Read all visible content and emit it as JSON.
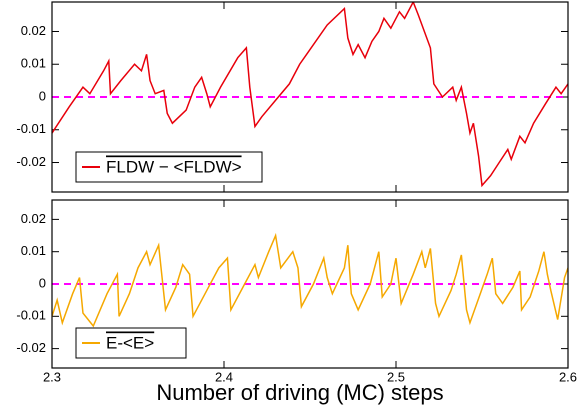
{
  "chart_data": [
    {
      "type": "line",
      "xlim": [
        2.3,
        2.6
      ],
      "xticks": [
        2.3,
        2.4,
        2.5,
        2.6
      ],
      "ylim": [
        -0.029,
        0.029
      ],
      "yticks": [
        -0.02,
        -0.01,
        0,
        0.01,
        0.02
      ],
      "hline": 0,
      "hline_color": "#ff00ff",
      "legend": "lower left",
      "series": [
        {
          "name": "FLDW − <FLDW>",
          "color": "#e8000b",
          "x": [
            2.3,
            2.31,
            2.318,
            2.322,
            2.33,
            2.333,
            2.334,
            2.34,
            2.348,
            2.352,
            2.355,
            2.357,
            2.36,
            2.365,
            2.367,
            2.37,
            2.378,
            2.383,
            2.387,
            2.39,
            2.392,
            2.398,
            2.408,
            2.413,
            2.415,
            2.418,
            2.422,
            2.43,
            2.438,
            2.444,
            2.448,
            2.46,
            2.47,
            2.472,
            2.475,
            2.478,
            2.482,
            2.486,
            2.49,
            2.493,
            2.497,
            2.502,
            2.505,
            2.51,
            2.513,
            2.52,
            2.522,
            2.527,
            2.533,
            2.535,
            2.538,
            2.541,
            2.543,
            2.545,
            2.548,
            2.55,
            2.555,
            2.56,
            2.565,
            2.567,
            2.572,
            2.575,
            2.58,
            2.587,
            2.593,
            2.596,
            2.6
          ],
          "values": [
            -0.011,
            -0.003,
            0.003,
            0.001,
            0.008,
            0.011,
            0.001,
            0.005,
            0.01,
            0.008,
            0.013,
            0.005,
            0.001,
            0.002,
            -0.005,
            -0.008,
            -0.004,
            0.003,
            0.006,
            0.001,
            -0.003,
            0.003,
            0.012,
            0.015,
            0.003,
            -0.009,
            -0.006,
            -0.001,
            0.004,
            0.01,
            0.013,
            0.022,
            0.027,
            0.018,
            0.013,
            0.016,
            0.012,
            0.017,
            0.02,
            0.024,
            0.021,
            0.026,
            0.024,
            0.029,
            0.025,
            0.015,
            0.004,
            0.0,
            0.003,
            -0.001,
            0.003,
            -0.005,
            -0.011,
            -0.008,
            -0.018,
            -0.027,
            -0.024,
            -0.02,
            -0.016,
            -0.019,
            -0.012,
            -0.014,
            -0.008,
            -0.002,
            0.003,
            0.001,
            0.004
          ]
        }
      ]
    },
    {
      "type": "line",
      "xlabel": "Number of driving (MC) steps",
      "xlim": [
        2.3,
        2.6
      ],
      "xticks": [
        2.3,
        2.4,
        2.5,
        2.6
      ],
      "ylim": [
        -0.026,
        0.026
      ],
      "yticks": [
        -0.02,
        -0.01,
        0,
        0.01,
        0.02
      ],
      "hline": 0,
      "hline_color": "#ff00ff",
      "legend": "lower left",
      "series": [
        {
          "name": "E-<E>",
          "color": "#f5a800",
          "x": [
            2.3,
            2.303,
            2.306,
            2.312,
            2.316,
            2.318,
            2.324,
            2.332,
            2.338,
            2.339,
            2.345,
            2.35,
            2.355,
            2.357,
            2.362,
            2.364,
            2.366,
            2.372,
            2.376,
            2.38,
            2.382,
            2.39,
            2.397,
            2.402,
            2.404,
            2.412,
            2.418,
            2.42,
            2.426,
            2.43,
            2.433,
            2.44,
            2.443,
            2.445,
            2.452,
            2.458,
            2.46,
            2.463,
            2.47,
            2.472,
            2.474,
            2.478,
            2.485,
            2.49,
            2.492,
            2.497,
            2.5,
            2.503,
            2.51,
            2.515,
            2.517,
            2.52,
            2.523,
            2.525,
            2.532,
            2.535,
            2.538,
            2.541,
            2.543,
            2.549,
            2.553,
            2.556,
            2.558,
            2.562,
            2.568,
            2.572,
            2.573,
            2.578,
            2.583,
            2.586,
            2.588,
            2.59,
            2.594,
            2.598,
            2.6
          ],
          "values": [
            -0.01,
            -0.005,
            -0.012,
            -0.003,
            0.002,
            -0.009,
            -0.013,
            -0.003,
            0.003,
            -0.01,
            -0.003,
            0.005,
            0.01,
            0.006,
            0.012,
            0.002,
            -0.008,
            -0.001,
            0.006,
            0.003,
            -0.01,
            -0.002,
            0.005,
            0.008,
            -0.008,
            0.0,
            0.006,
            0.002,
            0.01,
            0.015,
            0.005,
            0.01,
            0.005,
            -0.007,
            0.0,
            0.008,
            0.002,
            -0.003,
            0.005,
            0.012,
            -0.003,
            -0.008,
            0.0,
            0.01,
            -0.004,
            0.0,
            0.008,
            -0.006,
            0.003,
            0.01,
            0.005,
            0.011,
            -0.006,
            -0.01,
            -0.002,
            0.003,
            0.009,
            -0.008,
            -0.012,
            -0.003,
            0.003,
            0.008,
            -0.003,
            -0.006,
            -0.001,
            0.004,
            -0.008,
            -0.004,
            0.004,
            0.01,
            0.003,
            -0.002,
            -0.011,
            0.002,
            0.005
          ]
        }
      ]
    }
  ]
}
